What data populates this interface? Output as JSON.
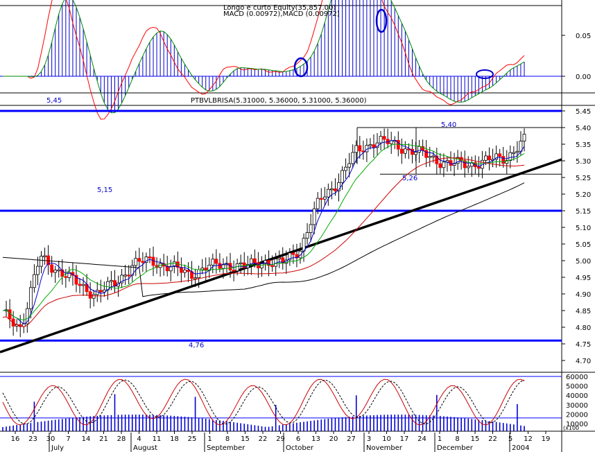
{
  "macd_panel": {
    "title1": "Longo e curto Equity(35,857.00)",
    "title2": "MACD (0.00972),MACD (0.00972)",
    "y_ticks": [
      "0.05",
      "0.00"
    ]
  },
  "price_panel": {
    "title": "PTBVLBRISA(5.31000, 5.36000, 5.31000, 5.36000)",
    "y_ticks": [
      "5.45",
      "5.40",
      "5.35",
      "5.30",
      "5.25",
      "5.20",
      "5.15",
      "5.10",
      "5.05",
      "5.00",
      "4.95",
      "4.90",
      "4.85",
      "4.80",
      "4.75",
      "4.70"
    ],
    "annotations": [
      "5,45",
      "5,40",
      "5,26",
      "5,15",
      "4,76"
    ]
  },
  "stoch_panel": {
    "y_ticks": [
      "60000",
      "50000",
      "40000",
      "30000",
      "20000",
      "10000"
    ],
    "unit_label": "(x100"
  },
  "x_axis": {
    "day_labels": [
      "16",
      "23",
      "30",
      "7",
      "14",
      "21",
      "28",
      "4",
      "11",
      "18",
      "25",
      "1",
      "8",
      "15",
      "22",
      "29",
      "6",
      "13",
      "20",
      "27",
      "3",
      "10",
      "17",
      "24",
      "1",
      "8",
      "15",
      "22",
      "5",
      "12",
      "19"
    ],
    "month_labels": [
      "July",
      "August",
      "September",
      "October",
      "November",
      "December",
      "2004"
    ]
  },
  "chart_data": {
    "type": "candlestick",
    "colors": {
      "up": "#000000",
      "down": "#ff0000",
      "ma_short": "#0000cc",
      "ma_mid": "#00aa00",
      "ma_long": "#cc0000",
      "ma_200": "#000000",
      "hlines": "#0000ff",
      "macd_hist": "#0000cc",
      "macd_signal": "#ff0000",
      "macd_line": "#008800"
    },
    "horizontal_lines": [
      5.45,
      5.15,
      4.76
    ],
    "resistance_lines": [
      5.4,
      5.26
    ],
    "price_range": [
      4.7,
      5.47
    ],
    "weekly_close": [
      {
        "week": "16",
        "close": 4.84
      },
      {
        "week": "23",
        "close": 4.8
      },
      {
        "week": "30",
        "close": 5.01
      },
      {
        "week": "7",
        "close": 4.97
      },
      {
        "week": "14",
        "close": 4.93
      },
      {
        "week": "21",
        "close": 4.9
      },
      {
        "week": "28",
        "close": 4.93
      },
      {
        "week": "4",
        "close": 4.99
      },
      {
        "week": "11",
        "close": 5.0
      },
      {
        "week": "18",
        "close": 4.98
      },
      {
        "week": "25",
        "close": 4.96
      },
      {
        "week": "1",
        "close": 4.98
      },
      {
        "week": "8",
        "close": 4.99
      },
      {
        "week": "15",
        "close": 4.98
      },
      {
        "week": "22",
        "close": 5.0
      },
      {
        "week": "29",
        "close": 4.99
      },
      {
        "week": "6",
        "close": 5.04
      },
      {
        "week": "13",
        "close": 5.18
      },
      {
        "week": "20",
        "close": 5.24
      },
      {
        "week": "27",
        "close": 5.33
      },
      {
        "week": "3",
        "close": 5.36
      },
      {
        "week": "10",
        "close": 5.35
      },
      {
        "week": "17",
        "close": 5.33
      },
      {
        "week": "24",
        "close": 5.31
      },
      {
        "week": "1",
        "close": 5.29
      },
      {
        "week": "8",
        "close": 5.29
      },
      {
        "week": "15",
        "close": 5.3
      },
      {
        "week": "22",
        "close": 5.31
      },
      {
        "week": "5",
        "close": 5.36
      }
    ],
    "macd_range": [
      -0.012,
      0.09
    ]
  }
}
